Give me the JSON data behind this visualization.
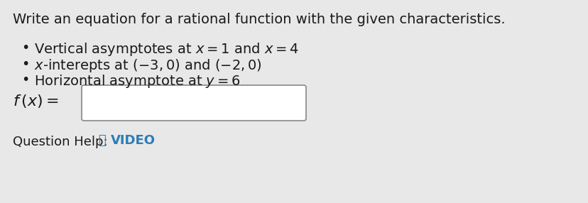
{
  "title": "Write an equation for a rational function with the given characteristics.",
  "bullet1": "Vertical asymptotes at $x = 1$ and $x = 4$",
  "bullet2": "$x$-interepts at $(-3, 0)$ and $(-2, 0)$",
  "bullet3": "Horizontal asymptote at $y = 6$",
  "label": "$f\\,(x) =$",
  "question_help": "Question Help:",
  "video_text": "VIDEO",
  "bg_color": "#e8e8e8",
  "text_color": "#1a1a1a",
  "box_color": "#ffffff",
  "box_edge_color": "#888888",
  "title_fontsize": 14,
  "bullet_fontsize": 14,
  "label_fontsize": 16,
  "qhelp_fontsize": 13,
  "video_color": "#2b7db5"
}
